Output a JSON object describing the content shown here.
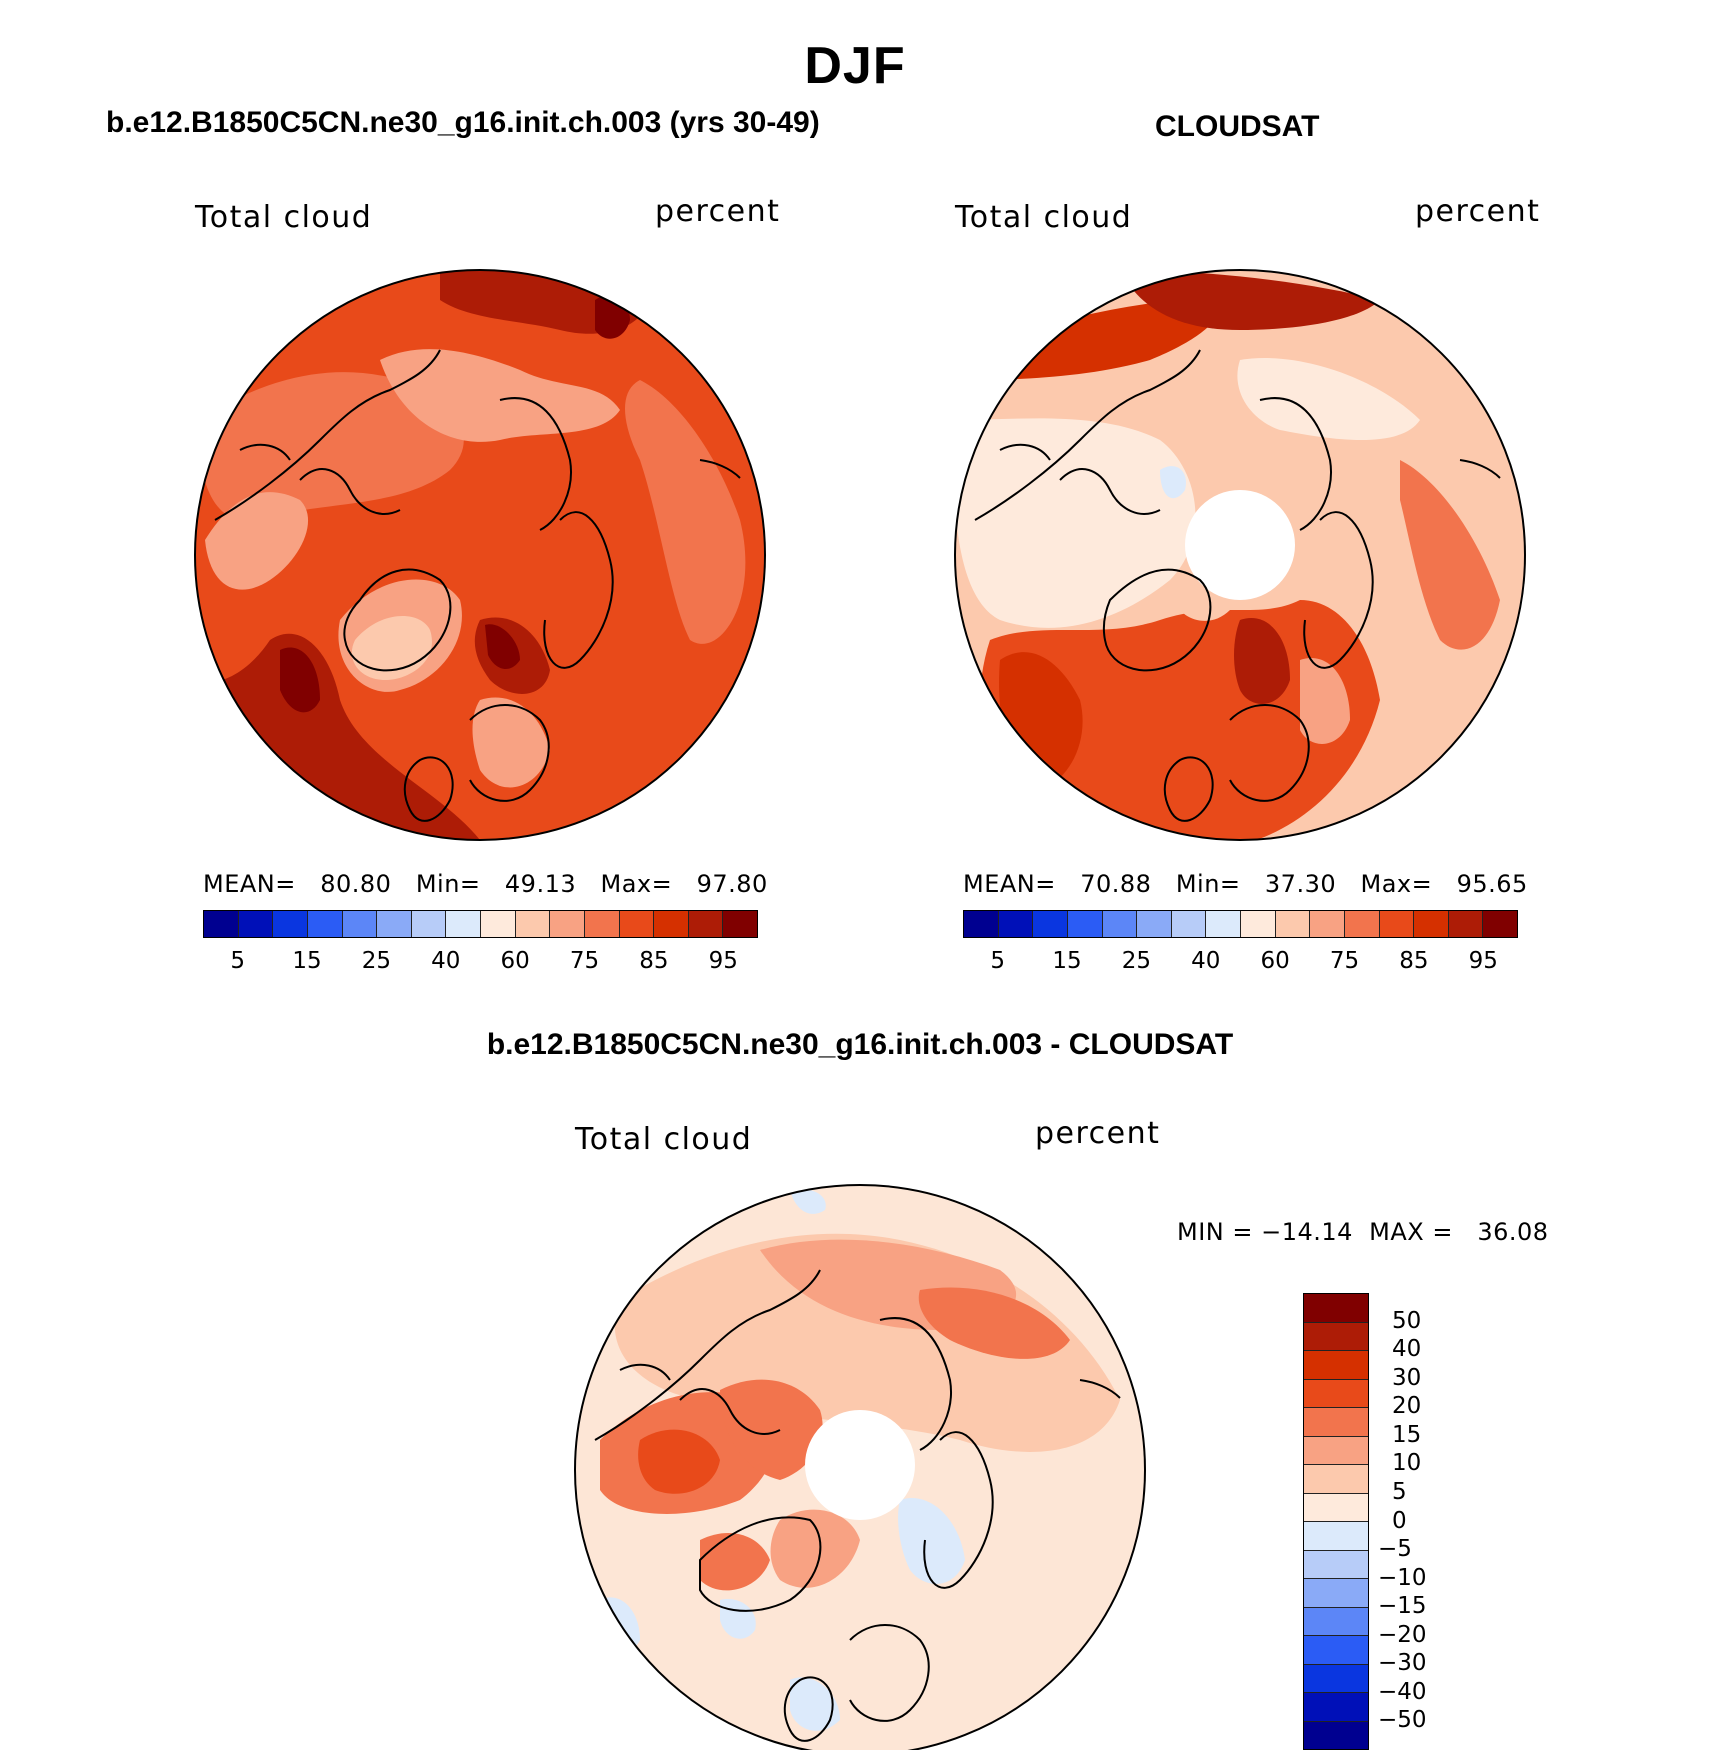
{
  "page": {
    "title": "DJF"
  },
  "panels": [
    {
      "id": "model",
      "title": "b.e12.B1850C5CN.ne30_g16.init.ch.003 (yrs 30-49)",
      "left_label": "Total cloud",
      "right_label": "percent",
      "stats_text": "MEAN=   80.80   Min=   49.13   Max=   97.80",
      "mean": 80.8,
      "min": 49.13,
      "max": 97.8,
      "base_color": "#e84a1a",
      "has_pole_hole": false
    },
    {
      "id": "obs",
      "title": "CLOUDSAT",
      "left_label": "Total cloud",
      "right_label": "percent",
      "stats_text": "MEAN=   70.88   Min=   37.30   Max=   95.65",
      "mean": 70.88,
      "min": 37.3,
      "max": 95.65,
      "base_color": "#fdd6bf",
      "has_pole_hole": true
    },
    {
      "id": "diff",
      "title": "b.e12.B1850C5CN.ne30_g16.init.ch.003 - CLOUDSAT",
      "left_label": "Total cloud",
      "right_label": "percent",
      "stats_text": "MIN = −14.14  MAX =   36.08",
      "min": -14.14,
      "max": 36.08,
      "base_color": "#fde6d6",
      "has_pole_hole": true
    }
  ],
  "chart_data": [
    {
      "type": "heatmap",
      "projection": "north-polar-stereographic",
      "title": "b.e12.B1850C5CN.ne30_g16.init.ch.003 (yrs 30-49)",
      "variable": "Total cloud",
      "units": "percent",
      "stats": {
        "mean": 80.8,
        "min": 49.13,
        "max": 97.8
      },
      "colorbar": {
        "orientation": "horizontal",
        "tick_labels": [
          "5",
          "15",
          "25",
          "40",
          "60",
          "75",
          "85",
          "95"
        ],
        "colors": [
          "#000090",
          "#0010b8",
          "#0a36e0",
          "#2b5cf5",
          "#5c86f7",
          "#8aaaf7",
          "#b7ccf8",
          "#dceafb",
          "#feeadc",
          "#fcc9ad",
          "#f8a283",
          "#f2744d",
          "#e84a1a",
          "#d53000",
          "#ad1c06",
          "#800000"
        ]
      }
    },
    {
      "type": "heatmap",
      "projection": "north-polar-stereographic",
      "title": "CLOUDSAT",
      "variable": "Total cloud",
      "units": "percent",
      "stats": {
        "mean": 70.88,
        "min": 37.3,
        "max": 95.65
      },
      "colorbar": {
        "orientation": "horizontal",
        "tick_labels": [
          "5",
          "15",
          "25",
          "40",
          "60",
          "75",
          "85",
          "95"
        ],
        "colors": [
          "#000090",
          "#0010b8",
          "#0a36e0",
          "#2b5cf5",
          "#5c86f7",
          "#8aaaf7",
          "#b7ccf8",
          "#dceafb",
          "#feeadc",
          "#fcc9ad",
          "#f8a283",
          "#f2744d",
          "#e84a1a",
          "#d53000",
          "#ad1c06",
          "#800000"
        ]
      }
    },
    {
      "type": "heatmap",
      "projection": "north-polar-stereographic",
      "title": "b.e12.B1850C5CN.ne30_g16.init.ch.003 - CLOUDSAT",
      "variable": "Total cloud",
      "units": "percent",
      "stats": {
        "min": -14.14,
        "max": 36.08
      },
      "colorbar": {
        "orientation": "vertical",
        "tick_labels": [
          "50",
          "40",
          "30",
          "20",
          "15",
          "10",
          "5",
          "0",
          "−5",
          "−10",
          "−15",
          "−20",
          "−30",
          "−40",
          "−50"
        ],
        "colors": [
          "#800000",
          "#ad1c06",
          "#d53000",
          "#e84a1a",
          "#f2744d",
          "#f8a283",
          "#fcc9ad",
          "#feeadc",
          "#dceafb",
          "#b7ccf8",
          "#8aaaf7",
          "#5c86f7",
          "#2b5cf5",
          "#0a36e0",
          "#0010b8",
          "#000090"
        ]
      }
    }
  ]
}
